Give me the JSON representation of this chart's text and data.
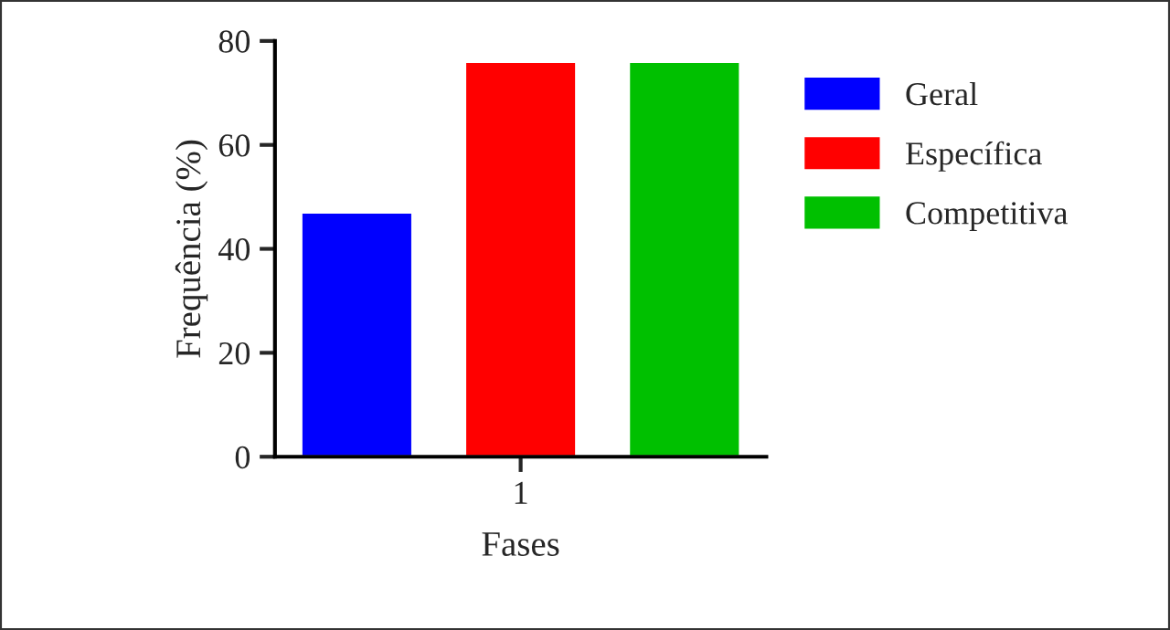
{
  "chart_data": {
    "type": "bar",
    "xlabel": "Fases",
    "ylabel": "Frequência (%)",
    "categories": [
      null,
      "1",
      null
    ],
    "series": [
      {
        "name": "Geral",
        "color": "#0000ff",
        "values": [
          47,
          null,
          null
        ]
      },
      {
        "name": "Específica",
        "color": "#ff0000",
        "values": [
          null,
          76,
          null
        ]
      },
      {
        "name": "Competitiva",
        "color": "#00c000",
        "values": [
          null,
          null,
          76
        ]
      }
    ],
    "ylim": [
      0,
      80
    ],
    "yticks": [
      0,
      20,
      40,
      60,
      80
    ],
    "grid": false,
    "legend": "right"
  }
}
